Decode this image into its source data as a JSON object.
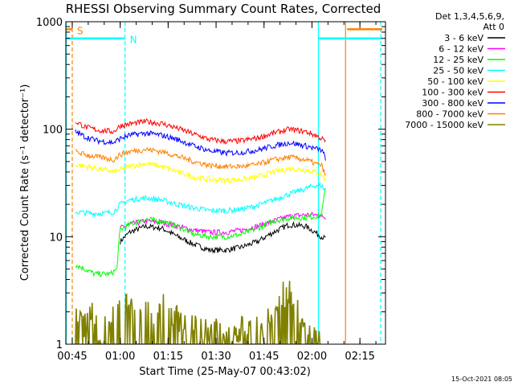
{
  "chart_data": {
    "type": "line",
    "title": "RHESSI Observing Summary Count Rates, Corrected",
    "xlabel": "Start Time (25-May-07 00:43:02)",
    "ylabel": "Corrected Count Rate (s⁻¹ detector⁻¹)",
    "y_scale": "log",
    "ylim": [
      1,
      1000
    ],
    "xlim_minutes": [
      0,
      100
    ],
    "y_ticks": [
      "1",
      "10",
      "100",
      "1000"
    ],
    "x_ticks": [
      {
        "minute": 2,
        "label": "00:45"
      },
      {
        "minute": 17,
        "label": "01:00"
      },
      {
        "minute": 32,
        "label": "01:15"
      },
      {
        "minute": 47,
        "label": "01:30"
      },
      {
        "minute": 62,
        "label": "01:45"
      },
      {
        "minute": 77,
        "label": "02:00"
      },
      {
        "minute": 92,
        "label": "02:15"
      }
    ],
    "legend": {
      "header_1": "Det 1,3,4,5,6,9,",
      "header_2": "Att 0",
      "placement": "right"
    },
    "footer_date": "15-Oct-2021 08:05",
    "annotations": [
      {
        "text": "S",
        "minute": 3.5,
        "color": "#ff8000"
      },
      {
        "text": "N",
        "minute": 20,
        "color": "#00ffff"
      }
    ],
    "vertical_lines": [
      {
        "minute": 0.1,
        "color": "#00ffff",
        "style": "solid"
      },
      {
        "minute": 2.0,
        "color": "#ff8000",
        "style": "dashed"
      },
      {
        "minute": 18.5,
        "color": "#00ffff",
        "style": "dashed"
      },
      {
        "minute": 79.0,
        "color": "#00ffff",
        "style": "solid"
      },
      {
        "minute": 87.5,
        "color": "#ff8000",
        "style": "solid"
      },
      {
        "minute": 98.5,
        "color": "#00ffff",
        "style": "dashed"
      }
    ],
    "flag_bars": [
      {
        "label": "S",
        "color": "#ff8000",
        "y": 850,
        "x_ranges": [
          [
            0,
            2
          ],
          [
            88,
            99
          ]
        ]
      },
      {
        "label": "N",
        "color": "#00ffff",
        "y": 700,
        "x_ranges": [
          [
            0,
            18.5
          ],
          [
            79,
            99
          ]
        ]
      }
    ],
    "series": [
      {
        "name": "3 - 6 keV",
        "color": "#000000",
        "x": [
          17,
          20,
          25,
          30,
          35,
          40,
          45,
          50,
          55,
          60,
          65,
          70,
          75,
          78,
          80,
          81.5
        ],
        "y": [
          9,
          11,
          12.5,
          12,
          10,
          8.5,
          7.5,
          7.5,
          8,
          9,
          11,
          13,
          12.5,
          11,
          10,
          9.5
        ]
      },
      {
        "name": "6 - 12 keV",
        "color": "#ff00ff",
        "x": [
          17,
          20,
          25,
          30,
          35,
          40,
          45,
          50,
          55,
          60,
          65,
          70,
          75,
          78,
          80,
          81.5
        ],
        "y": [
          12,
          13,
          14,
          13.5,
          12.5,
          11.5,
          11,
          11,
          11.5,
          12.5,
          14,
          15.5,
          16,
          16,
          15.5,
          15
        ]
      },
      {
        "name": "12 - 25 keV",
        "color": "#00ff00",
        "x": [
          3,
          6,
          9,
          12,
          14,
          16,
          17,
          20,
          25,
          30,
          35,
          40,
          45,
          50,
          55,
          60,
          65,
          70,
          75,
          78,
          80,
          81.5
        ],
        "y": [
          5.5,
          5,
          4.5,
          4.5,
          4.5,
          5,
          11.5,
          13,
          14.5,
          14,
          12.5,
          10.5,
          10,
          10,
          10.5,
          12,
          14,
          15,
          15,
          15.5,
          16,
          30
        ]
      },
      {
        "name": "25 - 50 keV",
        "color": "#00ffff",
        "x": [
          3,
          8,
          12,
          15,
          17,
          20,
          25,
          30,
          35,
          40,
          45,
          50,
          55,
          60,
          65,
          70,
          75,
          78,
          80,
          81.5
        ],
        "y": [
          17,
          16.5,
          16.5,
          17,
          20,
          22,
          23,
          22,
          20,
          18.5,
          17.5,
          17.5,
          18,
          19.5,
          22,
          25,
          28,
          30,
          30,
          25
        ]
      },
      {
        "name": "50 - 100 keV",
        "color": "#ffff00",
        "x": [
          3,
          8,
          12,
          15,
          17,
          20,
          25,
          30,
          35,
          40,
          45,
          50,
          55,
          60,
          65,
          70,
          75,
          78,
          80,
          81.5
        ],
        "y": [
          47,
          44,
          42,
          40,
          42,
          45,
          48,
          45,
          40,
          36,
          34,
          33.5,
          34,
          36,
          40,
          43,
          42,
          40,
          38,
          33
        ]
      },
      {
        "name": "100 - 300 keV",
        "color": "#ff0000",
        "x": [
          3,
          6,
          10,
          15,
          17,
          20,
          25,
          30,
          35,
          40,
          45,
          50,
          55,
          60,
          65,
          70,
          75,
          78,
          80,
          81.5
        ],
        "y": [
          118,
          105,
          98,
          95,
          108,
          112,
          118,
          113,
          102,
          90,
          80,
          77,
          78,
          83,
          92,
          100,
          95,
          88,
          82,
          75
        ]
      },
      {
        "name": "300 - 800 keV",
        "color": "#0000ff",
        "x": [
          3,
          6,
          10,
          15,
          17,
          20,
          25,
          30,
          35,
          40,
          45,
          50,
          55,
          60,
          65,
          70,
          75,
          78,
          80,
          81.5
        ],
        "y": [
          95,
          85,
          78,
          75,
          82,
          88,
          92,
          88,
          80,
          70,
          63,
          60,
          61,
          64,
          70,
          75,
          70,
          66,
          64,
          52
        ]
      },
      {
        "name": "800 - 7000 keV",
        "color": "#ff8000",
        "x": [
          3,
          6,
          10,
          15,
          17,
          20,
          25,
          30,
          35,
          40,
          45,
          50,
          55,
          60,
          65,
          70,
          75,
          78,
          80,
          81.5
        ],
        "y": [
          62,
          58,
          55,
          52,
          58,
          62,
          65,
          62,
          56,
          50,
          46,
          45,
          45,
          47,
          52,
          55,
          52,
          48,
          46,
          35
        ]
      },
      {
        "name": "7000 - 15000 keV",
        "color": "#808000",
        "x": [
          3,
          5,
          8,
          10,
          17,
          20,
          25,
          30,
          35,
          40,
          45,
          50,
          55,
          60,
          65,
          67,
          70,
          72,
          75,
          78,
          80
        ],
        "y": [
          2,
          1.5,
          2,
          1.4,
          2.5,
          2.5,
          2,
          2.3,
          1.8,
          1.5,
          1.4,
          1.3,
          1.4,
          1.5,
          1.8,
          3,
          3,
          2.5,
          1.5,
          1.2,
          1.2
        ]
      }
    ]
  }
}
